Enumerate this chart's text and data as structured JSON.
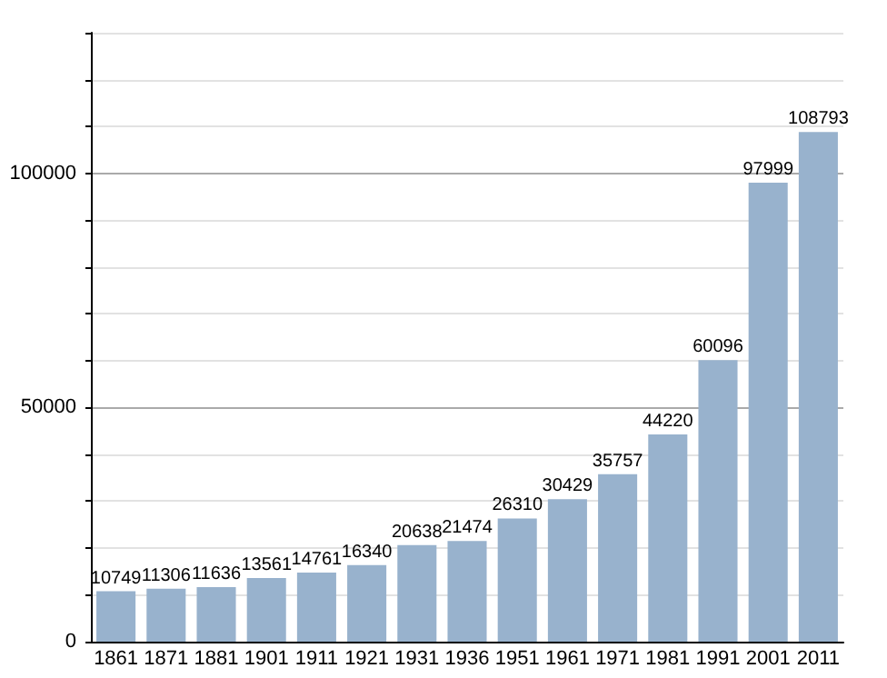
{
  "chart_data": {
    "type": "bar",
    "categories": [
      "1861",
      "1871",
      "1881",
      "1901",
      "1911",
      "1921",
      "1931",
      "1936",
      "1951",
      "1961",
      "1971",
      "1981",
      "1991",
      "2001",
      "2011"
    ],
    "values": [
      10749,
      11306,
      11636,
      13561,
      14761,
      16340,
      20638,
      21474,
      26310,
      30429,
      35757,
      44220,
      60096,
      97999,
      108793
    ],
    "color": "#98b2cd",
    "data_labels": true,
    "ylim": [
      0,
      130000
    ],
    "yticks": [
      0,
      {
        "value": 10000,
        "label": null
      },
      {
        "value": 20000,
        "label": null
      },
      {
        "value": 30000,
        "label": null
      },
      {
        "value": 40000,
        "label": null
      },
      50000,
      {
        "value": 60000,
        "label": null
      },
      {
        "value": 70000,
        "label": null
      },
      {
        "value": 80000,
        "label": null
      },
      {
        "value": 90000,
        "label": null
      },
      100000,
      {
        "value": 110000,
        "label": null
      },
      {
        "value": 120000,
        "label": null
      },
      {
        "value": 130000,
        "label": null
      }
    ],
    "grid": "y"
  }
}
